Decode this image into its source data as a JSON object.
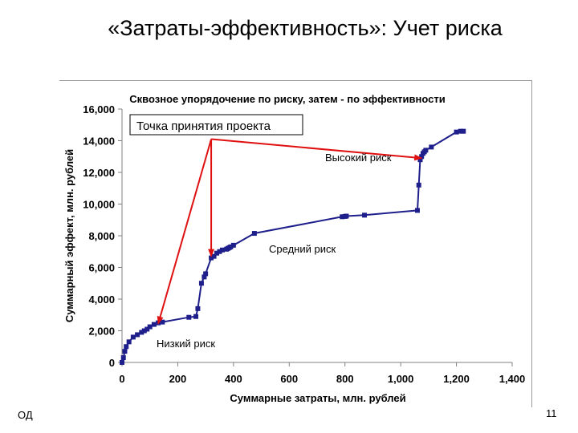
{
  "slide": {
    "title": "«Затраты-эффективность»: Учет риска",
    "footer_left": "ОД",
    "page_number": "11"
  },
  "chart_data": {
    "type": "line",
    "title": "Сквозное упорядочение по риску, затем - по эффективности",
    "xlabel": "Суммарные затраты, млн. рублей",
    "ylabel": "Суммарный эффект, млн. рублей",
    "xlim": [
      0,
      1400
    ],
    "ylim": [
      0,
      16000
    ],
    "x_ticks": [
      "0",
      "200",
      "400",
      "600",
      "800",
      "1,000",
      "1,200",
      "1,400"
    ],
    "y_ticks": [
      "0",
      "2,000",
      "4,000",
      "6,000",
      "8,000",
      "10,000",
      "12,000",
      "14,000",
      "16,000"
    ],
    "grid": false,
    "series": [
      {
        "color": "#1f1f8c",
        "x": [
          0,
          5,
          10,
          15,
          25,
          40,
          55,
          70,
          80,
          90,
          100,
          115,
          130,
          145,
          240,
          265,
          272,
          285,
          295,
          300,
          320,
          330,
          340,
          350,
          360,
          375,
          380,
          385,
          390,
          400,
          475,
          790,
          800,
          805,
          870,
          1060,
          1065,
          1070,
          1075,
          1080,
          1085,
          1090,
          1110,
          1200,
          1215,
          1225
        ],
        "y": [
          0,
          300,
          700,
          1000,
          1300,
          1600,
          1750,
          1900,
          2000,
          2100,
          2250,
          2400,
          2500,
          2550,
          2850,
          2900,
          3400,
          5000,
          5400,
          5600,
          6600,
          6700,
          6900,
          7000,
          7100,
          7150,
          7200,
          7250,
          7300,
          7400,
          8150,
          9200,
          9220,
          9240,
          9300,
          9600,
          11200,
          12800,
          13000,
          13200,
          13300,
          13400,
          13600,
          14550,
          14600,
          14600
        ]
      }
    ],
    "annotations": {
      "decision_box": "Точка принятия проекта",
      "high_risk": "Высокий риск",
      "medium_risk": "Средний риск",
      "low_risk": "Низкий риск"
    },
    "decision_arrows": {
      "origin": [
        320,
        14100
      ],
      "targets": [
        [
          130,
          2450
        ],
        [
          320,
          6700
        ],
        [
          1075,
          12900
        ]
      ]
    },
    "colors": {
      "series": "#1f1f8c",
      "arrows": "#e01010"
    }
  }
}
